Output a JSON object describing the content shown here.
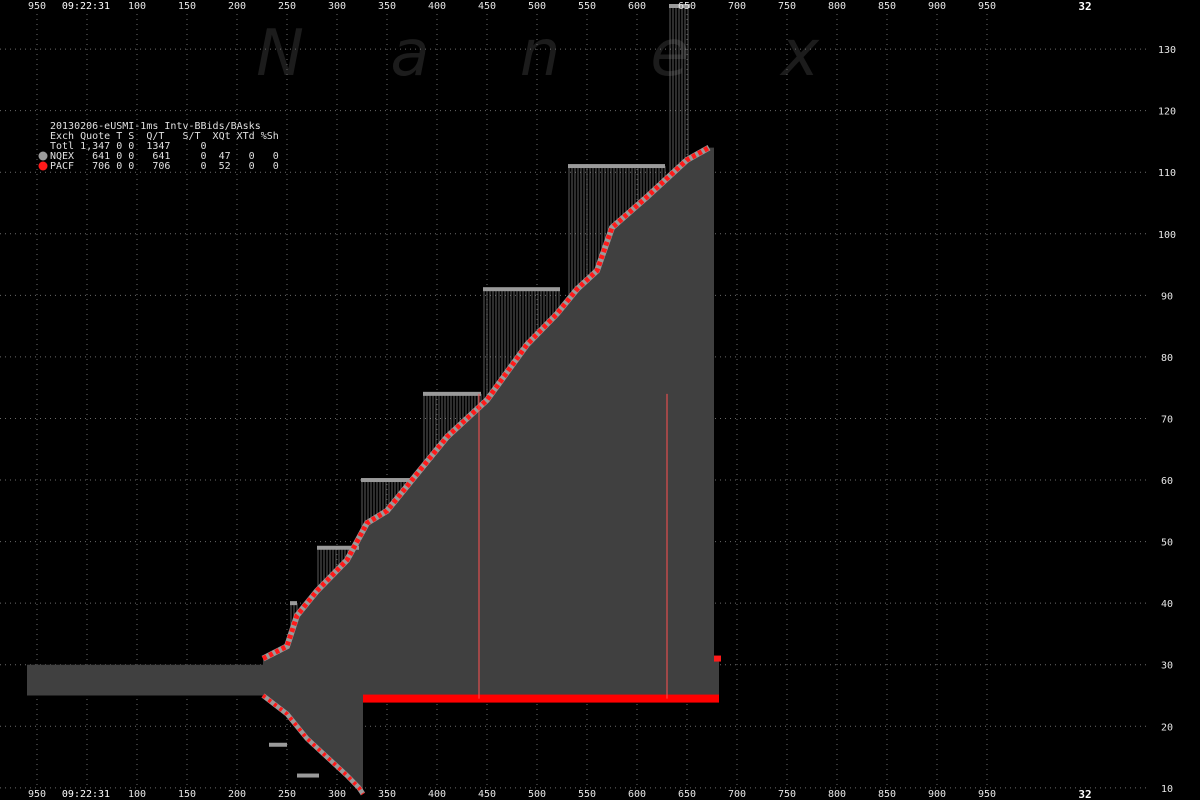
{
  "chart_data": {
    "type": "area",
    "title": "20130206-eUSMI-1ms Intv-BBids/BAsks",
    "watermark": [
      "N",
      "a",
      "n",
      "e",
      "x"
    ],
    "time_label": "09:22:31",
    "corner_label": "32",
    "x_ticks": [
      "950",
      "50",
      "100",
      "150",
      "200",
      "250",
      "300",
      "350",
      "400",
      "450",
      "500",
      "550",
      "600",
      "650",
      "700",
      "750",
      "800",
      "850",
      "900",
      "950"
    ],
    "y_ticks": [
      10,
      20,
      30,
      40,
      50,
      60,
      70,
      80,
      90,
      100,
      110,
      120,
      130
    ],
    "ylim": [
      9,
      137
    ],
    "xlim": [
      -70,
      1070
    ],
    "grid": true,
    "legend": {
      "placement": "top-left",
      "header": "Exch Quote T S  Q/T   S/T  XQt XTd %Sh",
      "total": "Totl 1,347 0 0  1347     0",
      "rows": [
        {
          "name": "NQEX",
          "color": "#9a9a9a",
          "text": "NQEX   641 0 0   641     0  47   0   0"
        },
        {
          "name": "PACF",
          "color": "#ff1a1a",
          "text": "PACF   706 0 0   706     0  52   0   0"
        }
      ]
    },
    "colors": {
      "area": "#404040",
      "nqex": "#9a9a9a",
      "pacf": "#ff1a1a",
      "grid": "#6a6a6a",
      "spread_bar": "#ff0000"
    },
    "pre_band": {
      "x": [
        -60,
        176
      ],
      "y": [
        25,
        30
      ]
    },
    "nqex_ask_steps": [
      {
        "x": [
          203,
          210
        ],
        "y": 40
      },
      {
        "x": [
          230,
          272
        ],
        "y": 49
      },
      {
        "x": [
          274,
          327
        ],
        "y": 60
      },
      {
        "x": [
          336,
          394
        ],
        "y": 74
      },
      {
        "x": [
          396,
          473
        ],
        "y": 91
      },
      {
        "x": [
          481,
          578
        ],
        "y": 111
      },
      {
        "x": [
          582,
          603
        ],
        "y": 137
      }
    ],
    "pacf_ask_line": {
      "x": [
        176,
        200,
        210,
        230,
        260,
        280,
        300,
        330,
        360,
        400,
        440,
        470,
        490,
        510,
        525,
        560,
        580,
        600,
        622
      ],
      "y": [
        31,
        33,
        38,
        42,
        47,
        53,
        55,
        61,
        67,
        73,
        82,
        87,
        91,
        94,
        101,
        106,
        109,
        112,
        114
      ]
    },
    "bid_decline": {
      "x": [
        176,
        200,
        220,
        240,
        260,
        272,
        276
      ],
      "y": [
        25,
        22,
        18,
        15,
        12,
        10,
        9
      ]
    },
    "nqex_bid_steps": [
      {
        "x": [
          182,
          200
        ],
        "y": 17
      },
      {
        "x": [
          210,
          232
        ],
        "y": 12
      }
    ],
    "pacf_bid_bar": {
      "x": [
        276,
        632
      ],
      "y": 24.5
    },
    "vertical_markers": [
      392,
      580
    ],
    "tail": {
      "x": [
        627,
        632
      ],
      "y": [
        25,
        31
      ]
    }
  }
}
